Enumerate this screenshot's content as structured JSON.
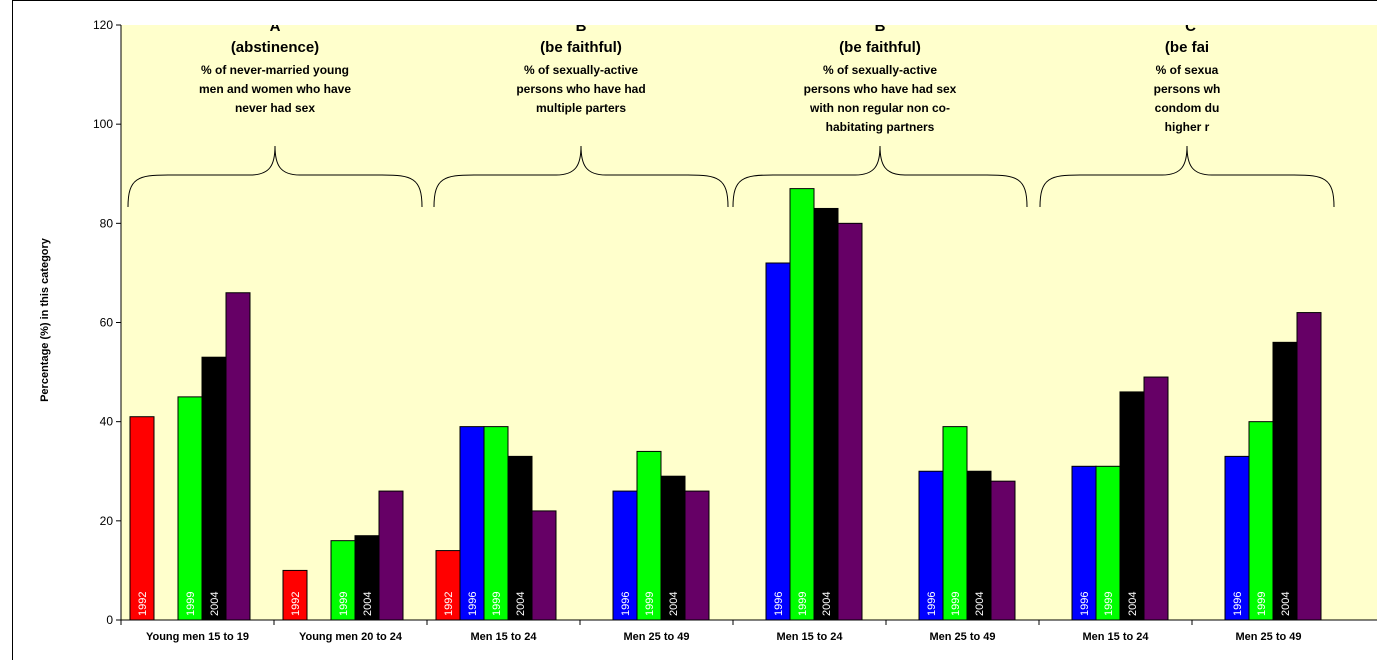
{
  "chart_data": {
    "type": "bar",
    "ylabel": "Percentage (%) in this category",
    "ylim": [
      0,
      120
    ],
    "yticks": [
      0,
      20,
      40,
      60,
      80,
      100,
      120
    ],
    "grid": false,
    "categories": [
      "Young men 15 to 19",
      "Young men 20 to 24",
      "Men 15 to 24",
      "Men 25 to 49",
      "Men 15 to 24",
      "Men 25 to 49",
      "Men 15 to 24",
      "Men 25 to 49"
    ],
    "series": [
      {
        "color": "#ff0000",
        "label": "1992",
        "values": [
          41,
          10,
          14,
          null,
          null,
          null,
          null,
          null
        ]
      },
      {
        "color": "#0000ff",
        "label": "1996",
        "values": [
          null,
          null,
          39,
          26,
          72,
          30,
          31,
          33
        ]
      },
      {
        "color": "#00ff00",
        "label": "1999",
        "values": [
          45,
          16,
          39,
          34,
          87,
          39,
          31,
          40
        ]
      },
      {
        "color": "#000000",
        "label": "2004",
        "values": [
          53,
          17,
          33,
          29,
          83,
          30,
          46,
          56
        ]
      },
      {
        "color": "#660066",
        "label": "",
        "values": [
          66,
          26,
          22,
          26,
          80,
          28,
          49,
          62
        ]
      }
    ],
    "annotations": [
      {
        "title": "\"A\"",
        "subtitle": "(abstinence)",
        "desc": [
          "% of never-married young",
          "men and women who have",
          "never had sex"
        ]
      },
      {
        "title": "\"B\"",
        "subtitle": "(be faithful)",
        "desc": [
          "% of sexually-active",
          "persons who have had",
          "multiple parters"
        ]
      },
      {
        "title": "\"B\"",
        "subtitle": "(be faithful)",
        "desc": [
          "% of sexually-active",
          "persons who have had sex",
          "with non regular non co-",
          "habitating partners"
        ]
      },
      {
        "title": "\"C",
        "subtitle": "(be fai",
        "desc": [
          "% of sexua",
          "persons wh",
          "condom du",
          "higher r"
        ]
      }
    ]
  },
  "colors": {
    "plot_background": "#ffffcc",
    "frame": "#000000"
  }
}
